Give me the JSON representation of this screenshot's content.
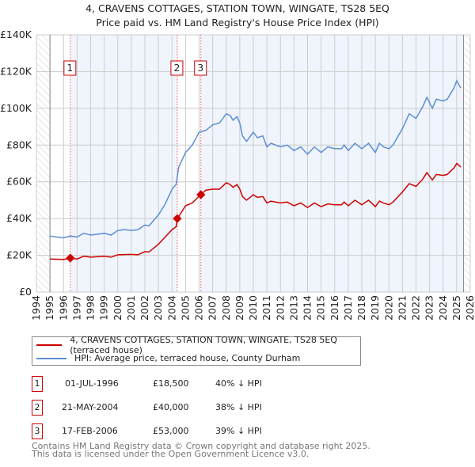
{
  "chart_data": {
    "type": "line",
    "title": "4, CRAVENS COTTAGES, STATION TOWN, WINGATE, TS28 5EQ",
    "subtitle": "Price paid vs. HM Land Registry's House Price Index (HPI)",
    "xlim": [
      1994,
      2026
    ],
    "ylim": [
      0,
      140000
    ],
    "x_ticks": [
      "1994",
      "1995",
      "1996",
      "1997",
      "1998",
      "1999",
      "2000",
      "2001",
      "2002",
      "2003",
      "2004",
      "2005",
      "2006",
      "2007",
      "2008",
      "2009",
      "2010",
      "2011",
      "2012",
      "2013",
      "2014",
      "2015",
      "2016",
      "2017",
      "2018",
      "2019",
      "2020",
      "2021",
      "2022",
      "2023",
      "2024",
      "2025",
      "2026"
    ],
    "y_ticks": [
      {
        "v": 0,
        "label": "£0"
      },
      {
        "v": 20000,
        "label": "£20K"
      },
      {
        "v": 40000,
        "label": "£40K"
      },
      {
        "v": 60000,
        "label": "£60K"
      },
      {
        "v": 80000,
        "label": "£80K"
      },
      {
        "v": 100000,
        "label": "£100K"
      },
      {
        "v": 120000,
        "label": "£120K"
      },
      {
        "v": 140000,
        "label": "£140K"
      }
    ],
    "grid": true,
    "series": [
      {
        "name": "4, CRAVENS COTTAGES, STATION TOWN, WINGATE, TS28 5EQ (terraced house)",
        "color": "#cc0000",
        "x": [
          1995,
          1996,
          1996.5,
          1997,
          1997.5,
          1998,
          1999,
          1999.5,
          2000,
          2001,
          2001.5,
          2002,
          2002.3,
          2003,
          2003.5,
          2004,
          2004.3,
          2004.4,
          2005,
          2005.5,
          2006.1,
          2006.5,
          2007,
          2007.5,
          2008,
          2008.3,
          2008.5,
          2008.8,
          2009,
          2009.2,
          2009.5,
          2010,
          2010.3,
          2010.7,
          2011,
          2011.3,
          2012,
          2012.5,
          2013,
          2013.5,
          2014,
          2014.5,
          2015,
          2015.5,
          2016,
          2016.5,
          2016.7,
          2017,
          2017.5,
          2018,
          2018.5,
          2019,
          2019.3,
          2019.6,
          2020,
          2020.3,
          2021,
          2021.5,
          2022,
          2022.5,
          2022.8,
          2023.2,
          2023.5,
          2024,
          2024.3,
          2024.8,
          2025,
          2025.3
        ],
        "y": [
          18,
          17.8,
          18.5,
          18,
          19.5,
          19,
          19.5,
          19,
          20.3,
          20.5,
          20.3,
          22,
          21.8,
          26,
          30,
          34,
          35.5,
          40,
          47,
          48.5,
          53,
          55.5,
          56,
          56,
          59.5,
          58.5,
          57,
          58.5,
          56,
          52,
          50,
          53,
          51.5,
          52,
          48.5,
          49.5,
          48.5,
          49,
          47,
          48.5,
          46,
          48.5,
          46.5,
          48,
          47.5,
          47.5,
          49,
          47,
          50,
          47.5,
          50,
          46.5,
          49.5,
          48.5,
          47.5,
          49,
          54.5,
          59,
          57.5,
          61.5,
          65,
          61,
          64,
          63.5,
          64,
          67.5,
          70,
          68
        ]
      },
      {
        "name": "HPI: Average price, terraced house, County Durham",
        "color": "#5b8fd4",
        "x": [
          1995,
          1996,
          1996.5,
          1997,
          1997.5,
          1998,
          1999,
          1999.5,
          2000,
          2000.5,
          2001,
          2001.5,
          2002,
          2002.3,
          2003,
          2003.5,
          2004,
          2004.3,
          2004.5,
          2005,
          2005.5,
          2006,
          2006.5,
          2007,
          2007.5,
          2008,
          2008.3,
          2008.5,
          2008.8,
          2009,
          2009.2,
          2009.5,
          2010,
          2010.3,
          2010.7,
          2011,
          2011.3,
          2012,
          2012.5,
          2013,
          2013.5,
          2014,
          2014.5,
          2015,
          2015.5,
          2016,
          2016.5,
          2016.7,
          2017,
          2017.5,
          2018,
          2018.5,
          2019,
          2019.3,
          2019.6,
          2020,
          2020.3,
          2021,
          2021.5,
          2022,
          2022.5,
          2022.8,
          2023.2,
          2023.5,
          2024,
          2024.3,
          2024.8,
          2025,
          2025.3
        ],
        "y": [
          30.5,
          29.5,
          30.5,
          30,
          32,
          31,
          32,
          31,
          33.5,
          34,
          33.5,
          34,
          36.5,
          36,
          42,
          48,
          56,
          58.5,
          68,
          76,
          80,
          87,
          88,
          91,
          92,
          97,
          96,
          93.5,
          95.5,
          92,
          85,
          82,
          87,
          84,
          85,
          79,
          81,
          79,
          80,
          77,
          79,
          75,
          79,
          76,
          79,
          78,
          78,
          80,
          77,
          81,
          78,
          81,
          76,
          81,
          79,
          78,
          80,
          89,
          97,
          94.5,
          101,
          106,
          100,
          105,
          104,
          105,
          111,
          115,
          111
        ]
      }
    ],
    "y_units": "thousands GBP",
    "sales": [
      {
        "n": "1",
        "x": 1996.5,
        "y": 18.5
      },
      {
        "n": "2",
        "x": 2004.39,
        "y": 40
      },
      {
        "n": "3",
        "x": 2006.13,
        "y": 53
      }
    ]
  },
  "legend": {
    "line1": "4, CRAVENS COTTAGES, STATION TOWN, WINGATE, TS28 5EQ (terraced house)",
    "line2": "HPI: Average price, terraced house, County Durham"
  },
  "transactions": [
    {
      "n": "1",
      "date": "01-JUL-1996",
      "price": "£18,500",
      "hpi": "40% ↓ HPI"
    },
    {
      "n": "2",
      "date": "21-MAY-2004",
      "price": "£40,000",
      "hpi": "38% ↓ HPI"
    },
    {
      "n": "3",
      "date": "17-FEB-2006",
      "price": "£53,000",
      "hpi": "39% ↓ HPI"
    }
  ],
  "footer": {
    "line1": "Contains HM Land Registry data © Crown copyright and database right 2025.",
    "line2": "This data is licensed under the Open Government Licence v3.0."
  }
}
